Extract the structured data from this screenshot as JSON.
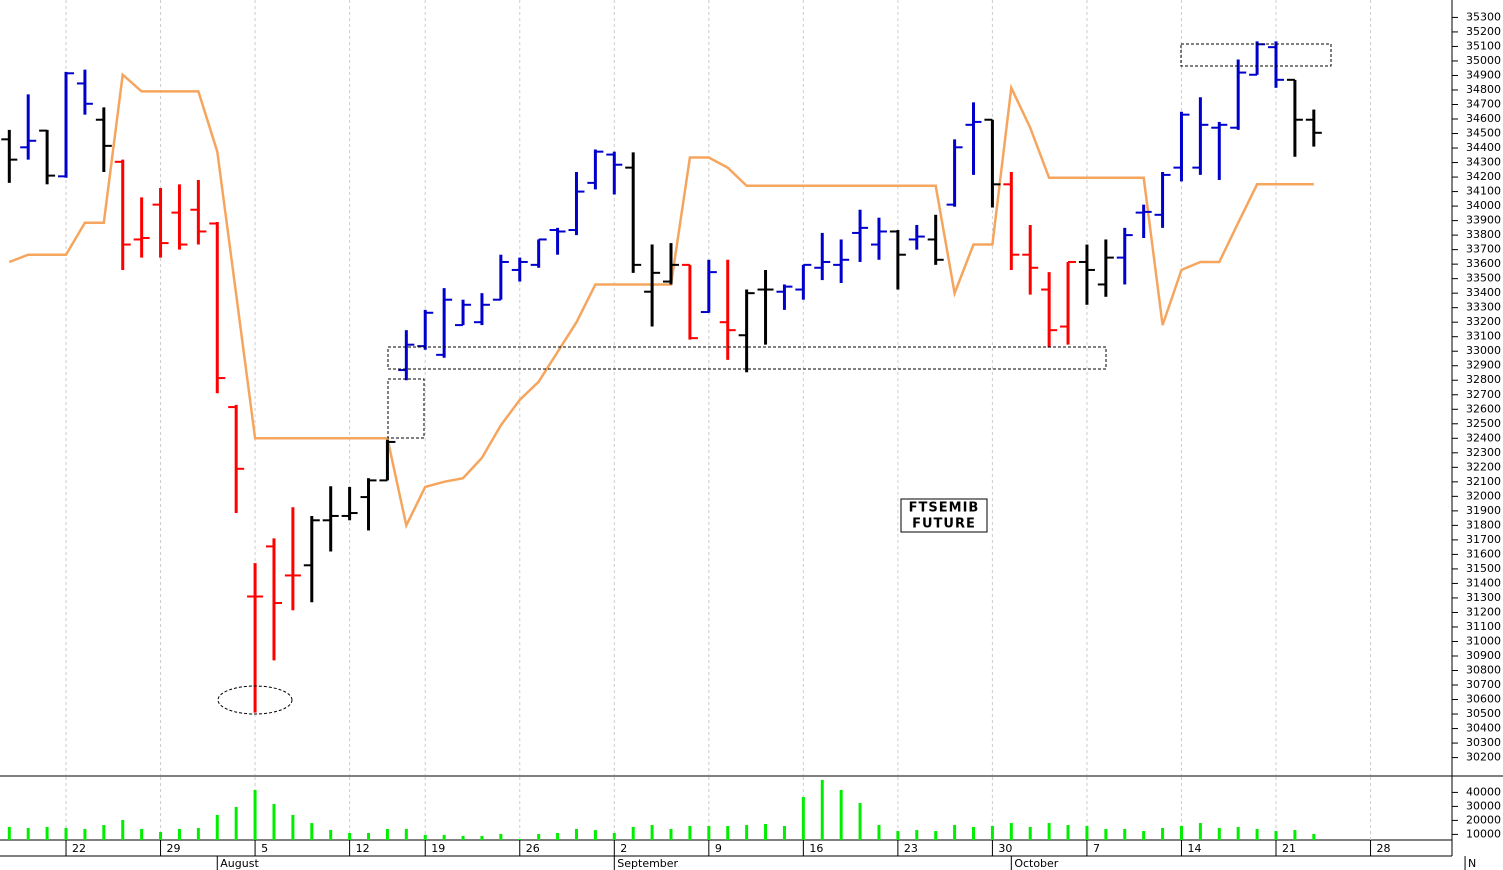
{
  "chart_data": {
    "type": "ohlc",
    "annotation": [
      "FTSEMIB",
      "FUTURE"
    ],
    "categories": [
      null,
      null,
      null,
      "22",
      null,
      null,
      null,
      null,
      "29",
      null,
      null,
      null,
      null,
      "5",
      null,
      null,
      null,
      null,
      "12",
      null,
      null,
      null,
      "19",
      null,
      null,
      null,
      null,
      "26",
      null,
      null,
      null,
      null,
      "2",
      null,
      null,
      null,
      null,
      "9",
      null,
      null,
      null,
      null,
      "16",
      null,
      null,
      null,
      null,
      "23",
      null,
      null,
      null,
      null,
      "30",
      null,
      null,
      null,
      null,
      "7",
      null,
      null,
      null,
      null,
      "14",
      null,
      null,
      null,
      null,
      "21",
      null,
      null,
      null,
      null,
      "28",
      null,
      null,
      null,
      null
    ],
    "months": [
      null,
      null,
      null,
      null,
      null,
      null,
      null,
      null,
      null,
      null,
      null,
      "August",
      null,
      null,
      null,
      null,
      null,
      null,
      null,
      null,
      null,
      null,
      null,
      null,
      null,
      null,
      null,
      null,
      null,
      null,
      null,
      null,
      "September",
      null,
      null,
      null,
      null,
      null,
      null,
      null,
      null,
      null,
      null,
      null,
      null,
      null,
      null,
      null,
      null,
      null,
      null,
      null,
      null,
      "October",
      null,
      null,
      null,
      null,
      null,
      null,
      null,
      null,
      null,
      null,
      null,
      null,
      null,
      null,
      null,
      null,
      null,
      null,
      null,
      null,
      null,
      null,
      null,
      "N"
    ],
    "open": [
      34460,
      34405,
      34520,
      34205,
      34845,
      34595,
      34305,
      33770,
      34010,
      33955,
      33975,
      33880,
      32615,
      31310,
      31655,
      31455,
      31525,
      31835,
      31865,
      31995,
      32110,
      32870,
      33035,
      32975,
      33180,
      33200,
      33355,
      33560,
      33595,
      33835,
      33835,
      34160,
      34355,
      34265,
      33410,
      33480,
      33595,
      33270,
      33200,
      33110,
      33425,
      33410,
      33425,
      33575,
      33595,
      33815,
      33735,
      33825,
      33770,
      33770,
      34010,
      34560,
      34595,
      34150,
      33665,
      33425,
      33170,
      33615,
      33460,
      33645,
      33955,
      33940,
      34265,
      34265,
      34540,
      34540,
      34905,
      35095,
      34870,
      34595,
      null,
      null,
      null,
      null,
      null,
      null,
      null
    ],
    "high": [
      34525,
      34770,
      34525,
      34925,
      34940,
      34680,
      34320,
      34060,
      34125,
      34150,
      34180,
      33890,
      32630,
      31540,
      31710,
      31925,
      31865,
      32070,
      32065,
      32125,
      32390,
      33145,
      33285,
      33435,
      33355,
      33400,
      33665,
      33645,
      33770,
      33850,
      34235,
      34390,
      34375,
      34370,
      33735,
      33745,
      33595,
      33630,
      33630,
      33425,
      33560,
      33460,
      33595,
      33815,
      33770,
      33975,
      33920,
      33835,
      33870,
      33940,
      34460,
      34715,
      34595,
      34235,
      33870,
      33545,
      33615,
      33735,
      33770,
      33850,
      34010,
      34235,
      34650,
      34750,
      34580,
      35010,
      35135,
      35135,
      34870,
      34665,
      null,
      null,
      null,
      null,
      null,
      null,
      null
    ],
    "low": [
      34160,
      34320,
      34150,
      34195,
      34630,
      34235,
      33560,
      33645,
      33645,
      33700,
      33735,
      32710,
      31885,
      30510,
      30870,
      31215,
      31270,
      31620,
      31835,
      31765,
      32110,
      32800,
      33010,
      32955,
      33180,
      33180,
      33355,
      33480,
      33575,
      33665,
      33800,
      34115,
      34080,
      33540,
      33170,
      33460,
      33080,
      33265,
      32940,
      32855,
      33045,
      33285,
      33355,
      33490,
      33470,
      33615,
      33630,
      33425,
      33700,
      33595,
      33995,
      34215,
      33990,
      33560,
      33390,
      33025,
      33045,
      33320,
      33375,
      33460,
      33780,
      33850,
      34170,
      34215,
      34180,
      34525,
      34905,
      34815,
      34340,
      34410,
      null,
      null,
      null,
      null,
      null,
      null,
      null
    ],
    "close": [
      34320,
      34450,
      34210,
      34915,
      34705,
      34415,
      33735,
      33780,
      33745,
      33735,
      33825,
      32815,
      32190,
      31310,
      31265,
      31455,
      31835,
      31865,
      31885,
      32110,
      32375,
      33045,
      33265,
      33355,
      33320,
      33320,
      33615,
      33615,
      33770,
      33825,
      34100,
      34375,
      34285,
      33595,
      33540,
      33595,
      33090,
      33545,
      33145,
      33400,
      33425,
      33445,
      33595,
      33615,
      33630,
      33850,
      33825,
      33665,
      33790,
      33630,
      34405,
      34580,
      34150,
      33665,
      33575,
      33145,
      33615,
      33560,
      33645,
      33800,
      33960,
      34215,
      34630,
      34560,
      34560,
      34920,
      35115,
      34870,
      34595,
      34505,
      null,
      null,
      null,
      null,
      null,
      null,
      null
    ],
    "bar_color": [
      "K",
      "B",
      "K",
      "B",
      "B",
      "K",
      "R",
      "R",
      "R",
      "R",
      "R",
      "R",
      "R",
      "R",
      "R",
      "R",
      "K",
      "K",
      "K",
      "K",
      "K",
      "B",
      "B",
      "B",
      "B",
      "B",
      "B",
      "B",
      "B",
      "B",
      "B",
      "B",
      "B",
      "K",
      "K",
      "K",
      "R",
      "B",
      "R",
      "K",
      "K",
      "B",
      "B",
      "B",
      "B",
      "B",
      "B",
      "K",
      "B",
      "K",
      "B",
      "B",
      "K",
      "R",
      "R",
      "R",
      "R",
      "K",
      "K",
      "B",
      "B",
      "B",
      "B",
      "B",
      "B",
      "B",
      "B",
      "B",
      "K",
      "K",
      null,
      null,
      null,
      null,
      null,
      null,
      null
    ],
    "palette": {
      "B": "#0000cc",
      "K": "#000000",
      "R": "#ff0000"
    },
    "stop_line": {
      "color": "#f6a55e",
      "values": [
        33615,
        33665,
        33665,
        33665,
        33885,
        33885,
        34905,
        34790,
        34790,
        34790,
        34790,
        34375,
        33390,
        32400,
        32400,
        32400,
        32400,
        32400,
        32400,
        32400,
        32400,
        31800,
        32065,
        32100,
        32125,
        32265,
        32490,
        32665,
        32790,
        32995,
        33200,
        33460,
        33460,
        33460,
        33460,
        33460,
        34335,
        34335,
        34265,
        34140,
        34140,
        34140,
        34140,
        34140,
        34140,
        34140,
        34140,
        34140,
        34140,
        34140,
        33400,
        33735,
        33735,
        34815,
        34540,
        34195,
        34195,
        34195,
        34195,
        34195,
        34195,
        33180,
        33560,
        33615,
        33615,
        33885,
        34150,
        34150,
        34150,
        34150,
        null,
        null,
        null,
        null,
        null,
        null,
        null
      ]
    },
    "volume": {
      "color": "#00ee00",
      "ylim": [
        6000,
        51000
      ],
      "yticks": [
        10000,
        20000,
        30000,
        40000
      ],
      "values": [
        15300,
        14600,
        15300,
        14600,
        13900,
        16700,
        20300,
        13900,
        11700,
        13900,
        14600,
        23900,
        29600,
        41700,
        31700,
        23900,
        18100,
        13100,
        11000,
        11000,
        13900,
        13900,
        9600,
        9600,
        8900,
        8900,
        10300,
        6700,
        10300,
        11000,
        13900,
        13100,
        11000,
        15300,
        16700,
        13900,
        16000,
        16000,
        16000,
        16700,
        17400,
        16000,
        36700,
        48900,
        41700,
        32400,
        16700,
        12400,
        13100,
        12400,
        16700,
        15300,
        16000,
        18100,
        15300,
        18100,
        16700,
        16000,
        13900,
        13900,
        12400,
        14600,
        16000,
        18100,
        14600,
        15300,
        13900,
        12400,
        13100,
        10300,
        null,
        null,
        null,
        null,
        null,
        null,
        null
      ]
    },
    "ylim": [
      30080,
      35420
    ],
    "yticks": [
      30200,
      30300,
      30400,
      30500,
      30600,
      30700,
      30800,
      30900,
      31000,
      31100,
      31200,
      31300,
      31400,
      31500,
      31600,
      31700,
      31800,
      31900,
      32000,
      32100,
      32200,
      32300,
      32400,
      32500,
      32600,
      32700,
      32800,
      32900,
      33000,
      33100,
      33200,
      33300,
      33400,
      33500,
      33600,
      33700,
      33800,
      33900,
      34000,
      34100,
      34200,
      34300,
      34400,
      34500,
      34600,
      34700,
      34800,
      34900,
      35000,
      35100,
      35200,
      35300
    ],
    "grid": true
  }
}
